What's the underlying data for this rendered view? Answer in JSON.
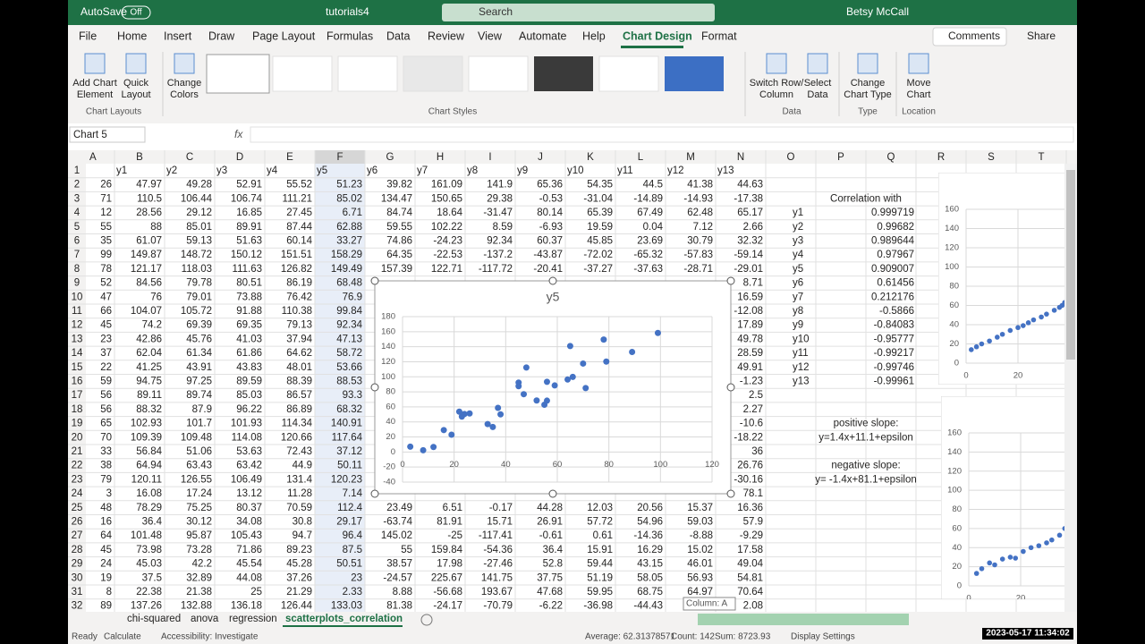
{
  "title": {
    "autosave": "AutoSave",
    "autosave_state": "Off",
    "filename": "tutorials4",
    "search": "Search",
    "user": "Betsy McCall"
  },
  "tabs": [
    "File",
    "Home",
    "Insert",
    "Draw",
    "Page Layout",
    "Formulas",
    "Data",
    "Review",
    "View",
    "Automate",
    "Help",
    "Chart Design",
    "Format"
  ],
  "actions": {
    "comments": "Comments",
    "share": "Share"
  },
  "ribbon": {
    "buttons": [
      {
        "lines": [
          "Add Chart",
          "Element"
        ]
      },
      {
        "lines": [
          "Quick",
          "Layout"
        ]
      },
      {
        "lines": [
          "Change",
          "Colors"
        ]
      },
      {
        "lines": [
          "Switch Row/",
          "Column"
        ]
      },
      {
        "lines": [
          "Select",
          "Data"
        ]
      },
      {
        "lines": [
          "Change",
          "Chart Type"
        ]
      },
      {
        "lines": [
          "Move",
          "Chart"
        ]
      }
    ],
    "groups": [
      "Chart Layouts",
      "Chart Styles",
      "Data",
      "Type",
      "Location"
    ]
  },
  "name_box": "Chart 5",
  "sheet": {
    "columns": [
      "A",
      "B",
      "C",
      "D",
      "E",
      "F",
      "G",
      "H",
      "I",
      "J",
      "K",
      "L",
      "M",
      "N",
      "O",
      "P",
      "Q",
      "R",
      "S",
      "T"
    ],
    "row_numbers": [
      1,
      2,
      3,
      4,
      5,
      6,
      7,
      8,
      9,
      10,
      11,
      12,
      13,
      14,
      15,
      16,
      17,
      18,
      19,
      20,
      21,
      22,
      23,
      24,
      25,
      26,
      27,
      28,
      29,
      30,
      31,
      32
    ],
    "rows": [
      [
        null,
        "y1",
        "y2",
        "y3",
        "y4",
        "y5",
        "y6",
        "y7",
        "y8",
        "y9",
        "y10",
        "y11",
        "y12",
        "y13"
      ],
      [
        "26",
        "47.97",
        "49.28",
        "52.91",
        "55.52",
        "51.23",
        "39.82",
        "161.09",
        "141.9",
        "65.36",
        "54.35",
        "44.5",
        "41.38",
        "44.63"
      ],
      [
        "71",
        "110.5",
        "106.44",
        "106.74",
        "111.21",
        "85.02",
        "134.47",
        "150.65",
        "29.38",
        "-0.53",
        "-31.04",
        "-14.89",
        "-14.93",
        "-17.38"
      ],
      [
        "12",
        "28.56",
        "29.12",
        "16.85",
        "27.45",
        "6.71",
        "84.74",
        "18.64",
        "-31.47",
        "80.14",
        "65.39",
        "67.49",
        "62.48",
        "65.17"
      ],
      [
        "55",
        "88",
        "85.01",
        "89.91",
        "87.44",
        "62.88",
        "59.55",
        "102.22",
        "8.59",
        "-6.93",
        "19.59",
        "0.04",
        "7.12",
        "2.66"
      ],
      [
        "35",
        "61.07",
        "59.13",
        "51.63",
        "60.14",
        "33.27",
        "74.86",
        "-24.23",
        "92.34",
        "60.37",
        "45.85",
        "23.69",
        "30.79",
        "32.32"
      ],
      [
        "99",
        "149.87",
        "148.72",
        "150.12",
        "151.51",
        "158.29",
        "64.35",
        "-22.53",
        "-137.2",
        "-43.87",
        "-72.02",
        "-65.32",
        "-57.83",
        "-59.14"
      ],
      [
        "78",
        "121.17",
        "118.03",
        "111.63",
        "126.82",
        "149.49",
        "157.39",
        "122.71",
        "-117.72",
        "-20.41",
        "-37.27",
        "-37.63",
        "-28.71",
        "-29.01"
      ],
      [
        "52",
        "84.56",
        "79.78",
        "80.51",
        "86.19",
        "68.48",
        null,
        null,
        null,
        null,
        null,
        null,
        null,
        "8.71"
      ],
      [
        "47",
        "76",
        "79.01",
        "73.88",
        "76.42",
        "76.9",
        null,
        null,
        null,
        null,
        null,
        null,
        null,
        "16.59"
      ],
      [
        "66",
        "104.07",
        "105.72",
        "91.88",
        "110.38",
        "99.84",
        null,
        null,
        null,
        null,
        null,
        null,
        null,
        "-12.08"
      ],
      [
        "45",
        "74.2",
        "69.39",
        "69.35",
        "79.13",
        "92.34",
        null,
        null,
        null,
        null,
        null,
        null,
        null,
        "17.89"
      ],
      [
        "23",
        "42.86",
        "45.76",
        "41.03",
        "37.94",
        "47.13",
        null,
        null,
        null,
        null,
        null,
        null,
        null,
        "49.78"
      ],
      [
        "37",
        "62.04",
        "61.34",
        "61.86",
        "64.62",
        "58.72",
        null,
        null,
        null,
        null,
        null,
        null,
        null,
        "28.59"
      ],
      [
        "22",
        "41.25",
        "43.91",
        "43.83",
        "48.01",
        "53.66",
        null,
        null,
        null,
        null,
        null,
        null,
        null,
        "49.91"
      ],
      [
        "59",
        "94.75",
        "97.25",
        "89.59",
        "88.39",
        "88.53",
        null,
        null,
        null,
        null,
        null,
        null,
        null,
        "-1.23"
      ],
      [
        "56",
        "89.11",
        "89.74",
        "85.03",
        "86.57",
        "93.3",
        null,
        null,
        null,
        null,
        null,
        null,
        null,
        "2.5"
      ],
      [
        "56",
        "88.32",
        "87.9",
        "96.22",
        "86.89",
        "68.32",
        null,
        null,
        null,
        null,
        null,
        null,
        null,
        "2.27"
      ],
      [
        "65",
        "102.93",
        "101.7",
        "101.93",
        "114.34",
        "140.91",
        null,
        null,
        null,
        null,
        null,
        null,
        null,
        "-10.6"
      ],
      [
        "70",
        "109.39",
        "109.48",
        "114.08",
        "120.66",
        "117.64",
        null,
        null,
        null,
        null,
        null,
        null,
        null,
        "-18.22"
      ],
      [
        "33",
        "56.84",
        "51.06",
        "53.63",
        "72.43",
        "37.12",
        null,
        null,
        null,
        null,
        null,
        null,
        null,
        "36"
      ],
      [
        "38",
        "64.94",
        "63.43",
        "63.42",
        "44.9",
        "50.11",
        null,
        null,
        null,
        null,
        null,
        null,
        null,
        "26.76"
      ],
      [
        "79",
        "120.11",
        "126.55",
        "106.49",
        "131.4",
        "120.23",
        null,
        null,
        null,
        null,
        null,
        null,
        null,
        "-30.16"
      ],
      [
        "3",
        "16.08",
        "17.24",
        "13.12",
        "11.28",
        "7.14",
        null,
        null,
        null,
        null,
        null,
        null,
        null,
        "78.1"
      ],
      [
        "48",
        "78.29",
        "75.25",
        "80.37",
        "70.59",
        "112.4",
        "23.49",
        "6.51",
        "-0.17",
        "44.28",
        "12.03",
        "20.56",
        "15.37",
        "16.36"
      ],
      [
        "16",
        "36.4",
        "30.12",
        "34.08",
        "30.8",
        "29.17",
        "-63.74",
        "81.91",
        "15.71",
        "26.91",
        "57.72",
        "54.96",
        "59.03",
        "57.9"
      ],
      [
        "64",
        "101.48",
        "95.87",
        "105.43",
        "94.7",
        "96.4",
        "145.02",
        "-25",
        "-117.41",
        "-0.61",
        "0.61",
        "-14.36",
        "-8.88",
        "-9.29"
      ],
      [
        "45",
        "73.98",
        "73.28",
        "71.86",
        "89.23",
        "87.5",
        "55",
        "159.84",
        "-54.36",
        "36.4",
        "15.91",
        "16.29",
        "15.02",
        "17.58"
      ],
      [
        "24",
        "45.03",
        "42.2",
        "45.54",
        "45.28",
        "50.51",
        "38.57",
        "17.98",
        "-27.46",
        "52.8",
        "59.44",
        "43.15",
        "46.01",
        "49.04"
      ],
      [
        "19",
        "37.5",
        "32.89",
        "44.08",
        "37.26",
        "23",
        "-24.57",
        "225.67",
        "141.75",
        "37.75",
        "51.19",
        "58.05",
        "56.93",
        "54.81"
      ],
      [
        "8",
        "22.38",
        "21.38",
        "25",
        "21.29",
        "2.33",
        "8.88",
        "-56.68",
        "193.67",
        "47.68",
        "59.95",
        "68.75",
        "64.97",
        "70.64"
      ],
      [
        "89",
        "137.26",
        "132.88",
        "136.18",
        "126.44",
        "133.03",
        "81.38",
        "-24.17",
        "-70.79",
        "-6.22",
        "-36.98",
        "-44.43",
        null,
        "2.08"
      ]
    ]
  },
  "correlation": {
    "title": "Correlation with",
    "labels": [
      "y1",
      "y2",
      "y3",
      "y4",
      "y5",
      "y6",
      "y7",
      "y8",
      "y9",
      "y10",
      "y11",
      "y12",
      "y13"
    ],
    "values": [
      "0.999719",
      "0.99682",
      "0.989644",
      "0.97967",
      "0.909007",
      "0.61456",
      "0.212176",
      "-0.5866",
      "-0.84083",
      "-0.95777",
      "-0.99217",
      "-0.99746",
      "-0.99961"
    ]
  },
  "notes": {
    "positive_label": "positive slope:",
    "positive_formula": "y=1.4x+11.1+epsilon",
    "negative_label": "negative slope:",
    "negative_formula": "y= -1.4x+81.1+epsilon"
  },
  "chart_data": [
    {
      "type": "scatter",
      "title": "y5",
      "color": "#4472c4",
      "grid": true,
      "x": [
        26,
        71,
        12,
        55,
        35,
        99,
        78,
        52,
        47,
        66,
        45,
        23,
        37,
        22,
        59,
        56,
        56,
        65,
        70,
        33,
        38,
        79,
        3,
        48,
        16,
        64,
        45,
        24,
        19,
        8,
        89
      ],
      "values": [
        51.23,
        85.02,
        6.71,
        62.88,
        33.27,
        158.29,
        149.49,
        68.48,
        76.9,
        99.84,
        92.34,
        47.13,
        58.72,
        53.66,
        88.53,
        93.3,
        68.32,
        140.91,
        117.64,
        37.12,
        50.11,
        120.23,
        7.14,
        112.4,
        29.17,
        96.4,
        87.5,
        50.51,
        23,
        2.33,
        133.03
      ],
      "xlim": [
        0,
        120
      ],
      "xticks": [
        0,
        20,
        40,
        60,
        80,
        100,
        120
      ],
      "ylim": [
        -40,
        180
      ],
      "yticks": [
        -40,
        -20,
        0,
        20,
        40,
        60,
        80,
        100,
        120,
        140,
        160,
        180
      ]
    },
    {
      "type": "scatter",
      "color": "#4472c4",
      "grid": true,
      "x": [
        2,
        4,
        6,
        9,
        12,
        14,
        17,
        20,
        22,
        24,
        26,
        29,
        31,
        34,
        36,
        37,
        38
      ],
      "values": [
        14,
        17,
        20,
        23,
        27,
        30,
        34,
        37,
        39,
        42,
        45,
        48,
        51,
        55,
        58,
        60,
        63
      ],
      "xlim": [
        0,
        100
      ],
      "xticks": [
        0,
        20
      ],
      "ylim": [
        0,
        160
      ],
      "yticks": [
        0,
        20,
        40,
        60,
        80,
        100,
        120,
        140,
        160
      ]
    },
    {
      "type": "scatter",
      "color": "#4472c4",
      "grid": true,
      "x": [
        3,
        5,
        8,
        10,
        13,
        16,
        18,
        21,
        24,
        27,
        30,
        32,
        35,
        37,
        38
      ],
      "values": [
        13,
        18,
        24,
        22,
        28,
        30,
        29,
        36,
        40,
        42,
        45,
        48,
        53,
        60,
        62
      ],
      "xlim": [
        0,
        100
      ],
      "xticks": [
        0,
        20
      ],
      "ylim": [
        0,
        160
      ],
      "yticks": [
        0,
        20,
        40,
        60,
        80,
        100,
        120,
        140,
        160
      ]
    }
  ],
  "sheet_tabs": [
    "chi-squared",
    "anova",
    "regression",
    "scatterplots_correlation"
  ],
  "tooltip": "Column: A",
  "status": {
    "ready": "Ready",
    "calculate": "Calculate",
    "accessibility": "Accessibility: Investigate",
    "average": "Average: 62.31378571",
    "count": "Count: 142",
    "sum": "Sum: 8723.93",
    "display": "Display Settings",
    "datetime": "2023-05-17 11:34:02"
  }
}
